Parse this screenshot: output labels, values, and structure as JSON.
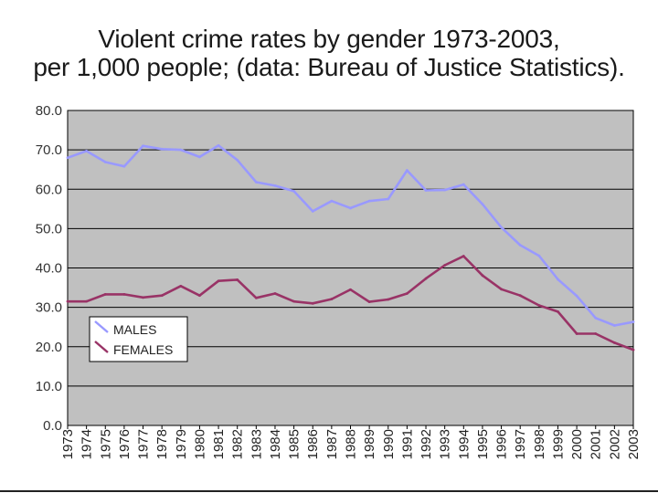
{
  "chart_data": {
    "type": "line",
    "title": "Violent crime rates by gender 1973-2003,",
    "subtitle": "per 1,000 people; (data: Bureau of Justice Statistics).",
    "xlabel": "",
    "ylabel": "",
    "ylim": [
      0,
      80
    ],
    "yticks": [
      "0.0",
      "10.0",
      "20.0",
      "30.0",
      "40.0",
      "50.0",
      "60.0",
      "70.0",
      "80.0"
    ],
    "grid": "horizontal",
    "legend": "bottom-left",
    "x": [
      "1973",
      "1974",
      "1975",
      "1976",
      "1977",
      "1978",
      "1979",
      "1980",
      "1981",
      "1982",
      "1983",
      "1984",
      "1985",
      "1986",
      "1987",
      "1988",
      "1989",
      "1990",
      "1991",
      "1992",
      "1993",
      "1994",
      "1995",
      "1996",
      "1997",
      "1998",
      "1999",
      "2000",
      "2001",
      "2002",
      "2003"
    ],
    "series": [
      {
        "name": "MALES",
        "color": "#9999ff",
        "values": [
          68.0,
          69.7,
          66.9,
          65.8,
          71.0,
          70.2,
          70.0,
          68.2,
          71.1,
          67.4,
          61.8,
          60.9,
          59.5,
          54.4,
          57.0,
          55.2,
          57.0,
          57.5,
          64.8,
          59.7,
          59.8,
          61.2,
          56.2,
          50.3,
          45.8,
          43.1,
          37.1,
          32.9,
          27.3,
          25.4,
          26.3
        ]
      },
      {
        "name": "FEMALES",
        "color": "#993366",
        "values": [
          31.5,
          31.5,
          33.3,
          33.3,
          32.5,
          33.0,
          35.4,
          33.0,
          36.7,
          37.0,
          32.4,
          33.5,
          31.5,
          31.0,
          32.1,
          34.5,
          31.4,
          32.0,
          33.5,
          37.3,
          40.7,
          43.0,
          38.1,
          34.6,
          33.0,
          30.5,
          28.9,
          23.3,
          23.3,
          21.0,
          19.2
        ]
      }
    ]
  }
}
